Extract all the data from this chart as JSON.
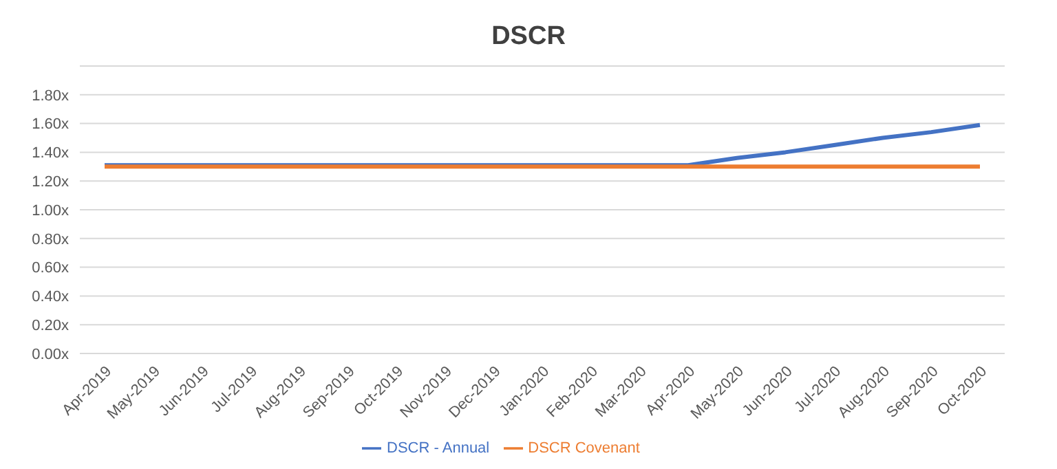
{
  "chart_data": {
    "type": "line",
    "title": "DSCR",
    "categories": [
      "Apr-2019",
      "May-2019",
      "Jun-2019",
      "Jul-2019",
      "Aug-2019",
      "Sep-2019",
      "Oct-2019",
      "Nov-2019",
      "Dec-2019",
      "Jan-2020",
      "Feb-2020",
      "Mar-2020",
      "Apr-2020",
      "May-2020",
      "Jun-2020",
      "Jul-2020",
      "Aug-2020",
      "Sep-2020",
      "Oct-2020"
    ],
    "series": [
      {
        "name": "DSCR - Annual",
        "color": "#4472c4",
        "values": [
          1.31,
          1.31,
          1.31,
          1.31,
          1.31,
          1.31,
          1.31,
          1.31,
          1.31,
          1.31,
          1.31,
          1.31,
          1.31,
          1.36,
          1.4,
          1.45,
          1.5,
          1.54,
          1.59
        ]
      },
      {
        "name": "DSCR Covenant",
        "color": "#ed7d31",
        "values": [
          1.3,
          1.3,
          1.3,
          1.3,
          1.3,
          1.3,
          1.3,
          1.3,
          1.3,
          1.3,
          1.3,
          1.3,
          1.3,
          1.3,
          1.3,
          1.3,
          1.3,
          1.3,
          1.3
        ]
      }
    ],
    "ylim": [
      0,
      2
    ],
    "yticks": [
      {
        "value": 0,
        "label": "0.00x"
      },
      {
        "value": 0.2,
        "label": "0.20x"
      },
      {
        "value": 0.4,
        "label": "0.40x"
      },
      {
        "value": 0.6,
        "label": "0.60x"
      },
      {
        "value": 0.8,
        "label": "0.80x"
      },
      {
        "value": 1,
        "label": "1.00x"
      },
      {
        "value": 1.2,
        "label": "1.20x"
      },
      {
        "value": 1.4,
        "label": "1.40x"
      },
      {
        "value": 1.6,
        "label": "1.60x"
      },
      {
        "value": 1.8,
        "label": "1.80x"
      },
      {
        "value": 2,
        "label": null
      }
    ],
    "grid": "y",
    "legend": "bottom",
    "marker": "none",
    "line_style": "solid"
  }
}
